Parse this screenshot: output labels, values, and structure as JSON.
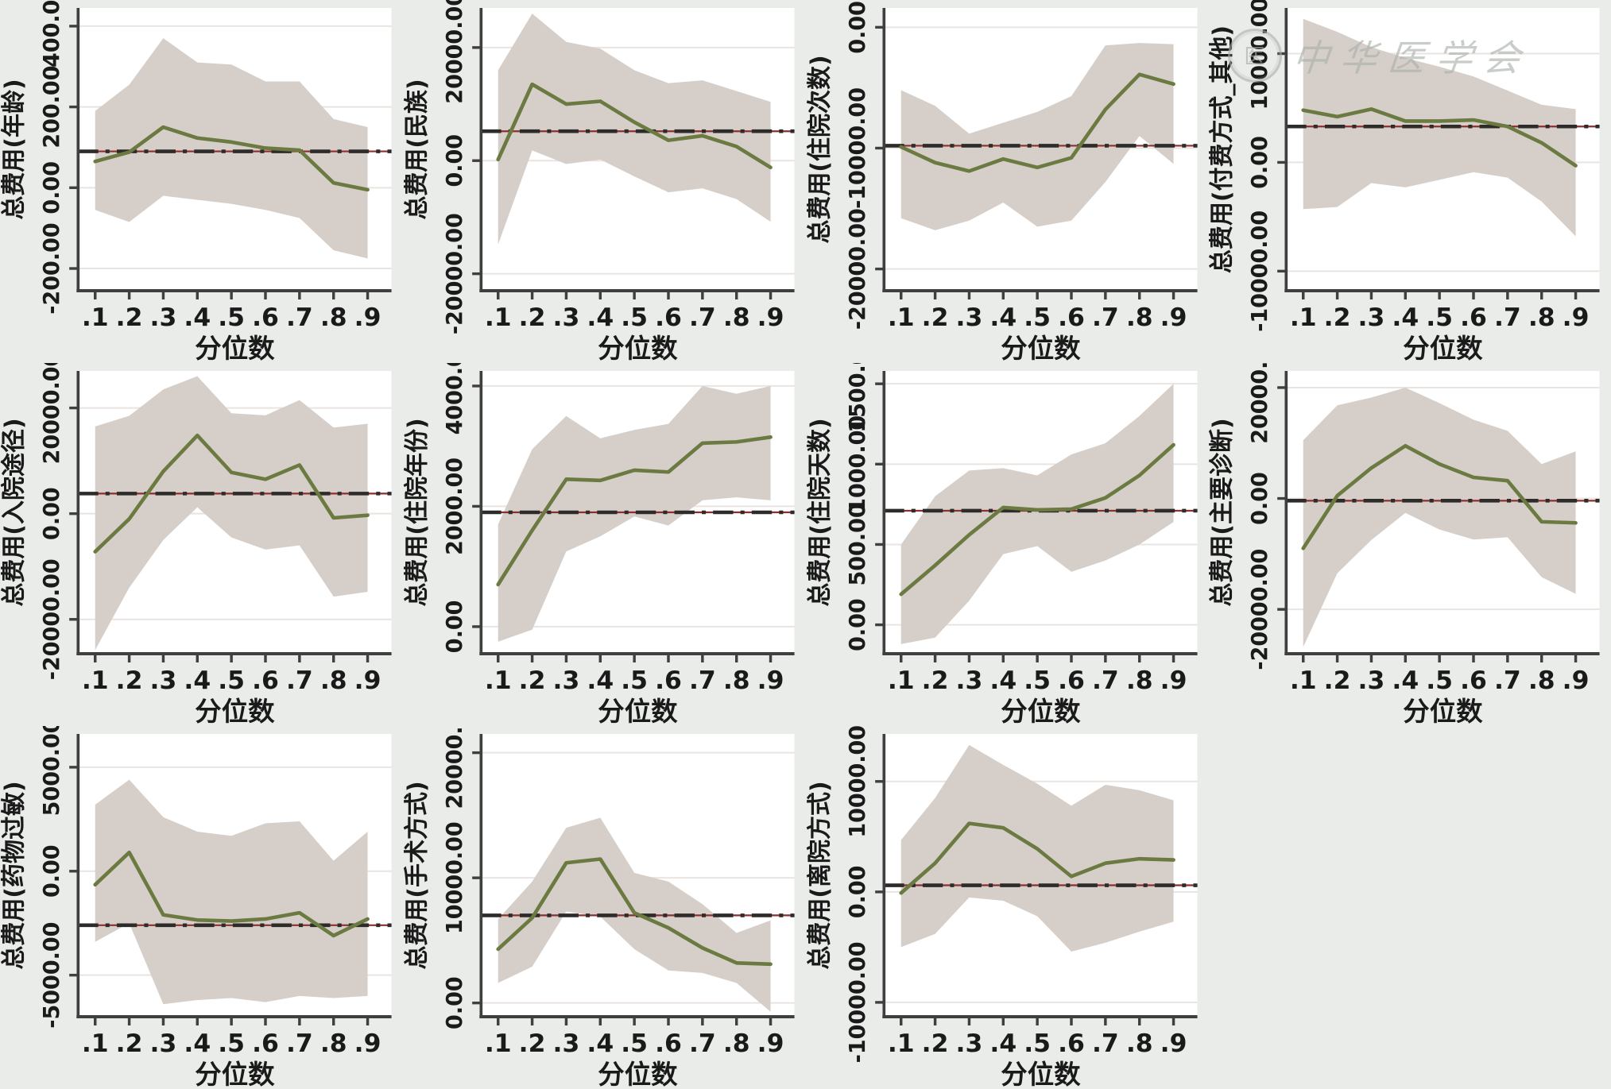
{
  "page": {
    "background": "#e9ece8"
  },
  "watermark": {
    "text": "中华医学会",
    "seal_char": "医"
  },
  "chart_data": {
    "type": "line",
    "layout": "grid-4x3, 11 quantile-regression coefficient panels with 95% CI band and OLS reference dashed line",
    "x_label": "分位数",
    "x": [
      0.1,
      0.2,
      0.3,
      0.4,
      0.5,
      0.6,
      0.7,
      0.8,
      0.9
    ],
    "x_tick_labels": [
      ".1",
      ".2",
      ".3",
      ".4",
      ".5",
      ".6",
      ".7",
      ".8",
      ".9"
    ],
    "xlim": [
      0.05,
      0.97
    ],
    "grid": "horizontal gridlines at y ticks",
    "colors": {
      "coef_line": "#6b7a41",
      "ci_band": "#d6cfc9",
      "ref_dash": "#2e2c2a",
      "ref_underlay": "#8c2f2f",
      "axis": "#3f3f3f",
      "gridline": "#e9e4e1",
      "plot_bg": "#ffffff",
      "text": "#1a1a1a"
    },
    "panels": [
      {
        "ylabel": "总费用(年龄)",
        "ylim": [
          -255,
          445
        ],
        "yticks": [
          {
            "v": 400,
            "label": "400.00"
          },
          {
            "v": 200,
            "label": "200.00"
          },
          {
            "v": 0,
            "label": "0.00"
          },
          {
            "v": -200,
            "label": "-200.00"
          }
        ],
        "ref": 90,
        "line": [
          65,
          88,
          150,
          123,
          113,
          98,
          93,
          12,
          -5
        ],
        "upper": [
          190,
          255,
          370,
          310,
          305,
          263,
          263,
          170,
          150
        ],
        "lower": [
          -55,
          -85,
          -20,
          -30,
          -40,
          -55,
          -75,
          -155,
          -175
        ]
      },
      {
        "ylabel": "总费用(民族)",
        "ylim": [
          -23000,
          27000
        ],
        "yticks": [
          {
            "v": 20000,
            "label": "20000.00"
          },
          {
            "v": 0,
            "label": "0.00"
          },
          {
            "v": -20000,
            "label": "-20000.00"
          }
        ],
        "ref": 5200,
        "line": [
          200,
          13500,
          10000,
          10500,
          6800,
          3600,
          4400,
          2500,
          -1200
        ],
        "upper": [
          16000,
          26000,
          21000,
          19800,
          16000,
          13700,
          14200,
          12300,
          10400
        ],
        "lower": [
          -14800,
          1800,
          -600,
          200,
          -2800,
          -5600,
          -4900,
          -6800,
          -10800
        ]
      },
      {
        "ylabel": "总费用(住院次数)",
        "ylim": [
          -21800,
          1600
        ],
        "yticks": [
          {
            "v": 0,
            "label": "0.00"
          },
          {
            "v": -10000,
            "label": "-10000.00"
          },
          {
            "v": -20000,
            "label": "-20000.00"
          }
        ],
        "ref": -9800,
        "line": [
          -9900,
          -11200,
          -11900,
          -10900,
          -11600,
          -10800,
          -6800,
          -3900,
          -4700
        ],
        "upper": [
          -5200,
          -6500,
          -8800,
          -7900,
          -7000,
          -5700,
          -1500,
          -1300,
          -1400
        ],
        "lower": [
          -15800,
          -16800,
          -16000,
          -14500,
          -16500,
          -16000,
          -12800,
          -9000,
          -11300
        ]
      },
      {
        "ylabel": "总费用(付费方式_其他)",
        "ylim": [
          -11800,
          14200
        ],
        "yticks": [
          {
            "v": 10000,
            "label": "10000.00"
          },
          {
            "v": 0,
            "label": "0.00"
          },
          {
            "v": -10000,
            "label": "-10000.00"
          }
        ],
        "ref": 3300,
        "line": [
          4800,
          4200,
          4900,
          3800,
          3800,
          3900,
          3300,
          1800,
          -300
        ],
        "upper": [
          13200,
          12000,
          10600,
          9600,
          8800,
          7900,
          6600,
          5300,
          4900
        ],
        "lower": [
          -4300,
          -4100,
          -1900,
          -2300,
          -1600,
          -900,
          -1400,
          -3600,
          -6800
        ]
      },
      {
        "ylabel": "总费用(入院途径)",
        "ylim": [
          -26500,
          27000
        ],
        "yticks": [
          {
            "v": 20000,
            "label": "20000.00"
          },
          {
            "v": 0,
            "label": "0.00"
          },
          {
            "v": -20000,
            "label": "-20000.00"
          }
        ],
        "ref": 3800,
        "line": [
          -7200,
          -1000,
          8000,
          14800,
          7800,
          6500,
          9200,
          -800,
          -300
        ],
        "upper": [
          16500,
          18500,
          23500,
          26000,
          19000,
          18600,
          21500,
          16300,
          17000
        ],
        "lower": [
          -25800,
          -14000,
          -5000,
          1200,
          -4500,
          -6800,
          -6000,
          -15700,
          -14800
        ]
      },
      {
        "ylabel": "总费用(住院年份)",
        "ylim": [
          -450,
          4250
        ],
        "yticks": [
          {
            "v": 4000,
            "label": "4000.00"
          },
          {
            "v": 2000,
            "label": "2000.00"
          },
          {
            "v": 0,
            "label": "0.00"
          }
        ],
        "ref": 1900,
        "line": [
          700,
          1600,
          2450,
          2430,
          2600,
          2570,
          3050,
          3070,
          3150
        ],
        "upper": [
          1700,
          2950,
          3500,
          3130,
          3270,
          3370,
          4000,
          3870,
          4000
        ],
        "lower": [
          -250,
          -50,
          1250,
          1500,
          1830,
          1680,
          2100,
          2150,
          2100
        ]
      },
      {
        "ylabel": "总费用(住院天数)",
        "ylim": [
          -180,
          1580
        ],
        "yticks": [
          {
            "v": 1500,
            "label": "1500.00"
          },
          {
            "v": 1000,
            "label": "1000.00"
          },
          {
            "v": 500,
            "label": "500.00"
          },
          {
            "v": 0,
            "label": "0.00"
          }
        ],
        "ref": 710,
        "line": [
          190,
          370,
          560,
          730,
          715,
          720,
          790,
          930,
          1120
        ],
        "upper": [
          500,
          800,
          960,
          975,
          930,
          1060,
          1130,
          1300,
          1500
        ],
        "lower": [
          -120,
          -80,
          150,
          440,
          490,
          330,
          400,
          500,
          640
        ]
      },
      {
        "ylabel": "总费用(主要诊断)",
        "ylim": [
          -28000,
          23000
        ],
        "yticks": [
          {
            "v": 20000,
            "label": "20000.00"
          },
          {
            "v": 0,
            "label": "0.00"
          },
          {
            "v": -20000,
            "label": "-20000.00"
          }
        ],
        "ref": -400,
        "line": [
          -9000,
          500,
          5500,
          9500,
          6200,
          3800,
          3200,
          -4200,
          -4400
        ],
        "upper": [
          10500,
          16800,
          18200,
          20000,
          17200,
          14200,
          12200,
          6200,
          8500
        ],
        "lower": [
          -26800,
          -13500,
          -7500,
          -2600,
          -5600,
          -7400,
          -7000,
          -14200,
          -17200
        ]
      },
      {
        "ylabel": "总费用(药物过敏)",
        "ylim": [
          -7000,
          6600
        ],
        "yticks": [
          {
            "v": 5000,
            "label": "5000.00"
          },
          {
            "v": 0,
            "label": "0.00"
          },
          {
            "v": -5000,
            "label": "-5000.00"
          }
        ],
        "ref": -2600,
        "line": [
          -650,
          900,
          -2100,
          -2350,
          -2400,
          -2300,
          -2000,
          -3100,
          -2300
        ],
        "upper": [
          3200,
          4400,
          2600,
          1900,
          1700,
          2300,
          2400,
          500,
          1900
        ],
        "lower": [
          -3400,
          -2500,
          -6400,
          -6200,
          -6100,
          -6300,
          -6000,
          -6100,
          -6000
        ]
      },
      {
        "ylabel": "总费用(手术方式)",
        "ylim": [
          -1100,
          21500
        ],
        "yticks": [
          {
            "v": 20000,
            "label": "20000.00"
          },
          {
            "v": 10000,
            "label": "10000.00"
          },
          {
            "v": 0,
            "label": "0.00"
          }
        ],
        "ref": 7000,
        "line": [
          4300,
          6800,
          11200,
          11500,
          7200,
          6000,
          4400,
          3200,
          3100
        ],
        "upper": [
          6700,
          9700,
          14000,
          14800,
          10400,
          9700,
          7900,
          5600,
          6600
        ],
        "lower": [
          1600,
          2900,
          7300,
          6900,
          4300,
          2600,
          2400,
          1600,
          -700
        ]
      },
      {
        "ylabel": "总费用(离院方式)",
        "ylim": [
          -11300,
          14300
        ],
        "yticks": [
          {
            "v": 10000,
            "label": "10000.00"
          },
          {
            "v": 0,
            "label": "0.00"
          },
          {
            "v": -10000,
            "label": "-10000.00"
          }
        ],
        "ref": 600,
        "line": [
          -100,
          2600,
          6200,
          5800,
          3900,
          1400,
          2600,
          3000,
          2900
        ],
        "upper": [
          4700,
          8500,
          13300,
          11500,
          9800,
          7800,
          9700,
          9200,
          8300
        ],
        "lower": [
          -5000,
          -3800,
          -500,
          -800,
          -2200,
          -5400,
          -4600,
          -3600,
          -2700
        ]
      }
    ]
  }
}
